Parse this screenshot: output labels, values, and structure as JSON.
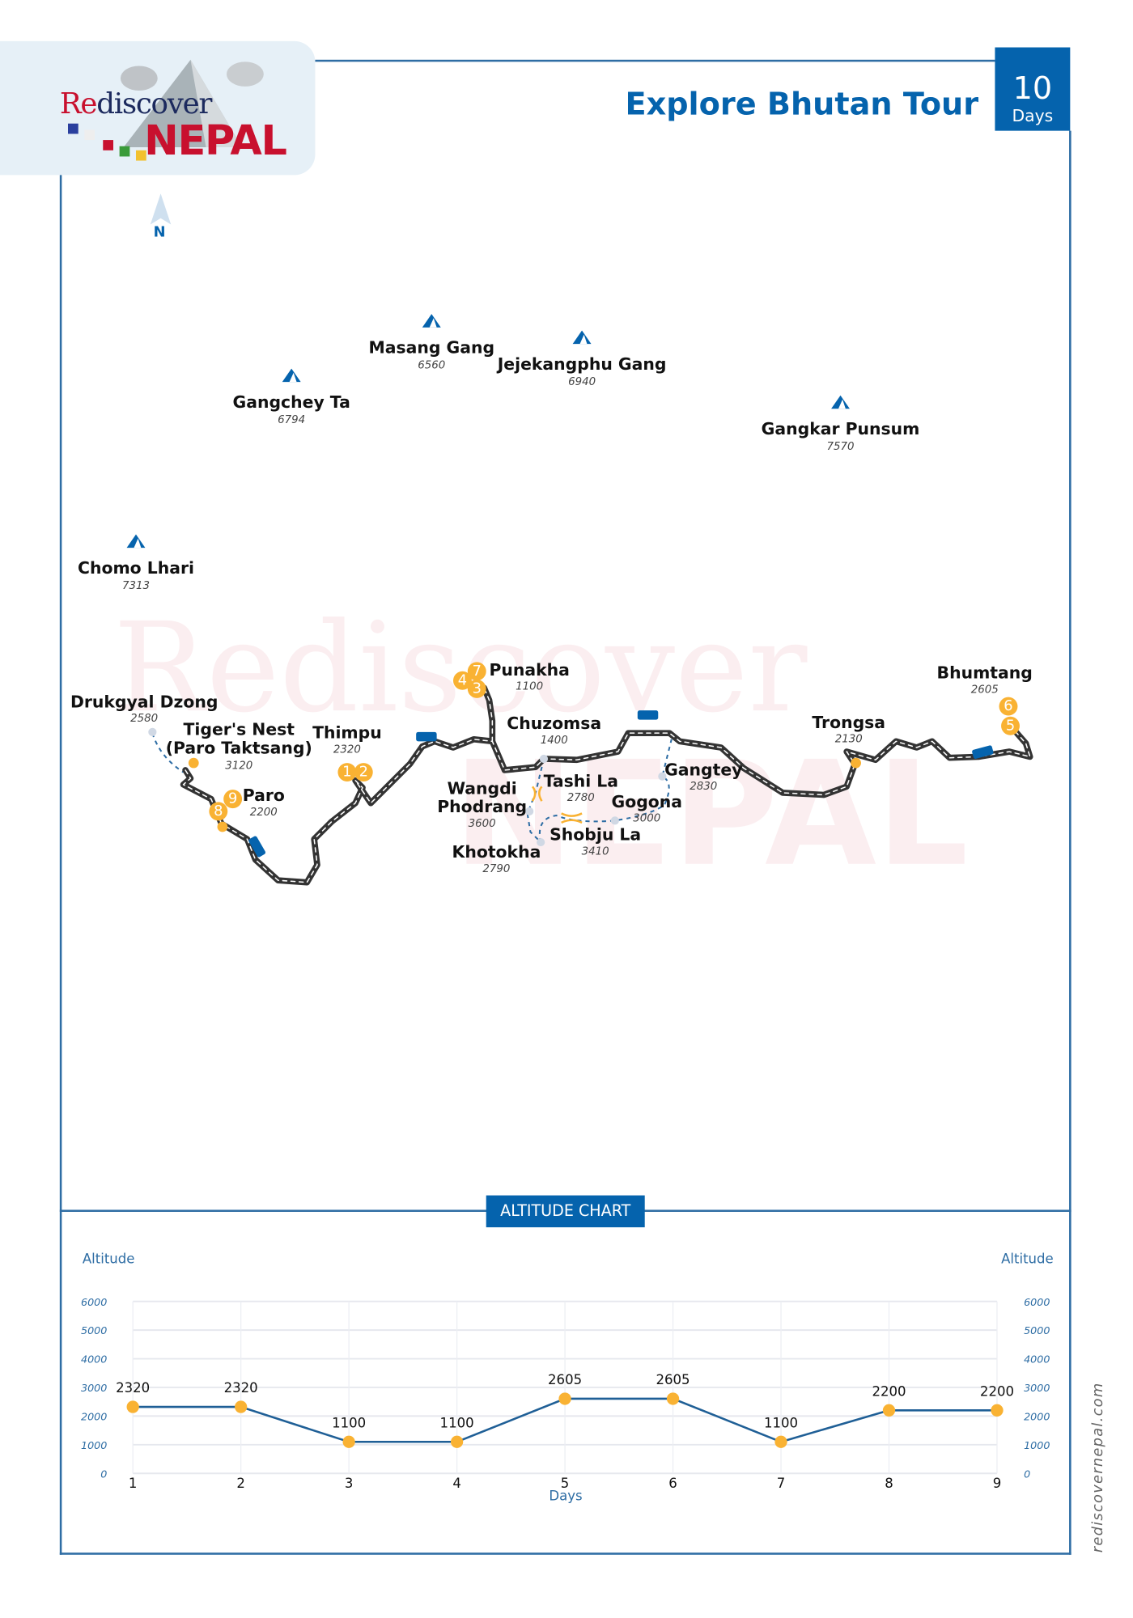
{
  "header": {
    "title": "Explore Bhutan Tour",
    "days_number": "10",
    "days_label": "Days"
  },
  "logo": {
    "text_re": "Re",
    "text_discover": "discover",
    "text_nepal": "NEPAL"
  },
  "compass": {
    "label": "N"
  },
  "colors": {
    "brand_blue": "#0563ad",
    "stop_orange": "#f9b233",
    "route": "#333333",
    "logo_red": "#c8102e"
  },
  "peaks": [
    {
      "name": "Masang Gang",
      "alt": "6560",
      "icon": "mountain-icon"
    },
    {
      "name": "Jejekangphu Gang",
      "alt": "6940",
      "icon": "mountain-icon"
    },
    {
      "name": "Gangchey Ta",
      "alt": "6794",
      "icon": "mountain-icon"
    },
    {
      "name": "Gangkar Punsum",
      "alt": "7570",
      "icon": "mountain-icon"
    },
    {
      "name": "Chomo Lhari",
      "alt": "7313",
      "icon": "mountain-icon"
    }
  ],
  "places": [
    {
      "name": "Drukgyal Dzong",
      "alt": "2580"
    },
    {
      "name": "Tiger's Nest",
      "name2": "(Paro Taktsang)",
      "alt": "3120"
    },
    {
      "name": "Thimpu",
      "alt": "2320"
    },
    {
      "name": "Paro",
      "alt": "2200"
    },
    {
      "name": "Punakha",
      "alt": "1100"
    },
    {
      "name": "Chuzomsa",
      "alt": "1400"
    },
    {
      "name": "Tashi La",
      "alt": "2780"
    },
    {
      "name": "Wangdi",
      "name2": "Phodrang",
      "alt": "3600"
    },
    {
      "name": "Gangtey",
      "alt": "2830"
    },
    {
      "name": "Gogona",
      "alt": "3000"
    },
    {
      "name": "Shobju La",
      "alt": "3410"
    },
    {
      "name": "Khotokha",
      "alt": "2790"
    },
    {
      "name": "Trongsa",
      "alt": "2130"
    },
    {
      "name": "Bhumtang",
      "alt": "2605"
    }
  ],
  "day_badges": [
    "1",
    "2",
    "3",
    "4",
    "5",
    "6",
    "7",
    "8",
    "9"
  ],
  "chart_data": {
    "type": "line",
    "title": "ALTITUDE CHART",
    "xlabel": "Days",
    "ylabel": "Altitude",
    "ylabel_right": "Altitude",
    "categories": [
      "1",
      "2",
      "3",
      "4",
      "5",
      "6",
      "7",
      "8",
      "9"
    ],
    "values": [
      2320,
      2320,
      1100,
      1100,
      2605,
      2605,
      1100,
      2200,
      2200
    ],
    "ylim": [
      0,
      6000
    ],
    "yticks": [
      "0",
      "1000",
      "2000",
      "3000",
      "4000",
      "5000",
      "6000"
    ],
    "grid": true,
    "line_color": "#1f5f96",
    "marker_color": "#f9b233"
  },
  "footer": {
    "website": "rediscovernepal.com"
  }
}
